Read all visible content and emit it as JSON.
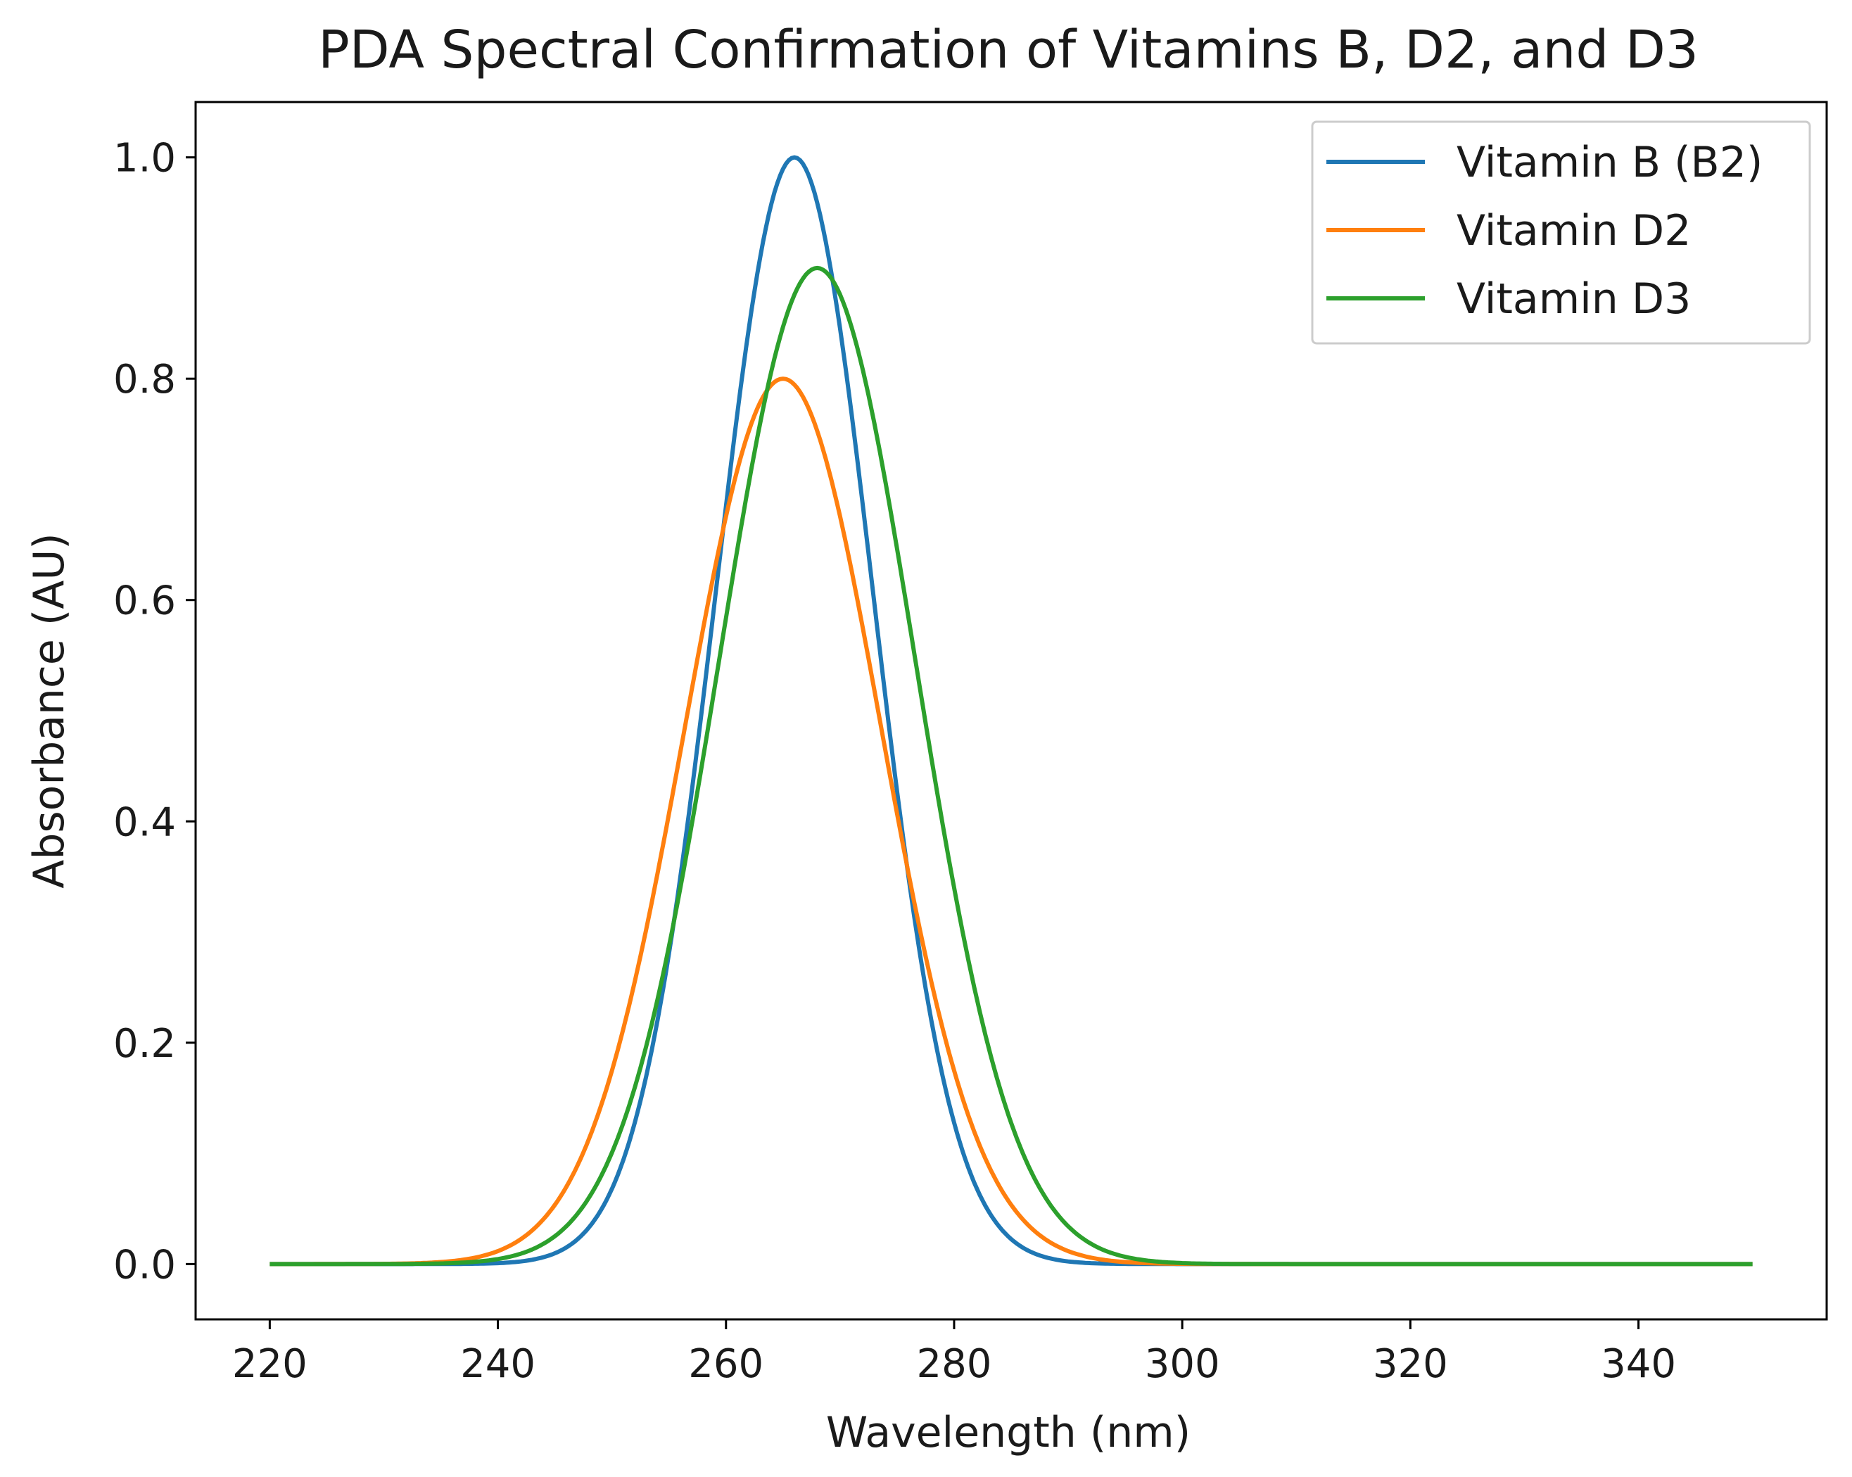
{
  "chart_data": {
    "type": "line",
    "title": "PDA Spectral Confirmation of Vitamins B, D2, and D3",
    "xlabel": "Wavelength (nm)",
    "ylabel": "Absorbance (AU)",
    "xlim": [
      213.5,
      356.5
    ],
    "ylim": [
      -0.05,
      1.05
    ],
    "xticks": [
      220,
      240,
      260,
      280,
      300,
      320,
      340
    ],
    "xtick_labels": [
      "220",
      "240",
      "260",
      "280",
      "300",
      "320",
      "340"
    ],
    "yticks": [
      0.0,
      0.2,
      0.4,
      0.6,
      0.8,
      1.0
    ],
    "ytick_labels": [
      "0.0",
      "0.2",
      "0.4",
      "0.6",
      "0.8",
      "1.0"
    ],
    "x_range": [
      220,
      350
    ],
    "grid": false,
    "legend_position": "top-right",
    "series": [
      {
        "name": "Vitamin B (B2)",
        "color": "#1f77b4",
        "peak_wavelength": 266,
        "peak_absorbance": 1.0,
        "width_sigma": 6.9
      },
      {
        "name": "Vitamin D2",
        "color": "#ff7f0e",
        "peak_wavelength": 265,
        "peak_absorbance": 0.8,
        "width_sigma": 8.6
      },
      {
        "name": "Vitamin D3",
        "color": "#2ca02c",
        "peak_wavelength": 268,
        "peak_absorbance": 0.9,
        "width_sigma": 8.6
      }
    ]
  }
}
